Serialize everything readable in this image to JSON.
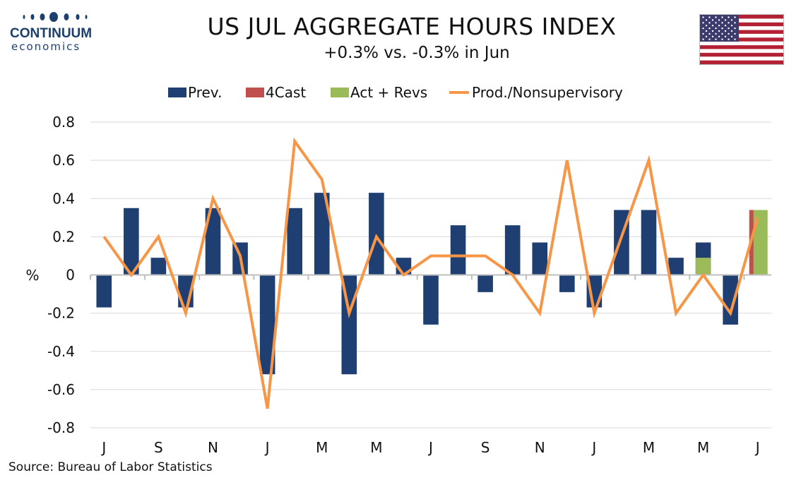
{
  "logo": {
    "name": "CONTINUUM",
    "sub": "economics"
  },
  "title": "US JUL AGGREGATE HOURS INDEX",
  "subtitle": "+0.3% vs. -0.3% in Jun",
  "source": "Source: Bureau of Labor Statistics",
  "chart_data": {
    "type": "bar",
    "ylabel": "%",
    "ylim": [
      -0.8,
      0.8
    ],
    "yticks": [
      0.8,
      0.6,
      0.4,
      0.2,
      0,
      -0.2,
      -0.4,
      -0.6,
      -0.8
    ],
    "ytick_labels": [
      "0.8",
      "0.6",
      "0.4",
      "0.2",
      "0",
      "-0.2",
      "-0.4",
      "-0.6",
      "-0.8"
    ],
    "xtick_labels": [
      "J",
      "S",
      "N",
      "J",
      "M",
      "M",
      "J",
      "S",
      "N",
      "J",
      "M",
      "M",
      "J"
    ],
    "grid": true,
    "legend_position": "top-center",
    "series": [
      {
        "name": "Prev.",
        "kind": "bar",
        "color": "#1f3f73",
        "values": [
          -0.17,
          0.35,
          0.09,
          -0.17,
          0.35,
          0.17,
          -0.52,
          0.35,
          0.43,
          -0.52,
          0.43,
          0.09,
          -0.26,
          0.26,
          -0.09,
          0.26,
          0.17,
          -0.09,
          -0.17,
          0.34,
          0.34,
          0.09,
          0.17,
          -0.26,
          0.34
        ]
      },
      {
        "name": "4Cast",
        "kind": "bar",
        "color": "#c0504d",
        "values": [
          null,
          null,
          null,
          null,
          null,
          null,
          null,
          null,
          null,
          null,
          null,
          null,
          null,
          null,
          null,
          null,
          null,
          null,
          null,
          null,
          null,
          null,
          null,
          null,
          0.34
        ]
      },
      {
        "name": "Act + Revs",
        "kind": "bar",
        "color": "#9bbb59",
        "values": [
          null,
          null,
          null,
          null,
          null,
          null,
          null,
          null,
          null,
          null,
          null,
          null,
          null,
          null,
          null,
          null,
          null,
          null,
          null,
          null,
          null,
          null,
          0.09,
          null,
          0.34
        ]
      },
      {
        "name": "Prod./Nonsupervisory",
        "kind": "line",
        "color": "#f79646",
        "values": [
          0.2,
          0.0,
          0.2,
          -0.2,
          0.4,
          0.1,
          -0.7,
          0.7,
          0.5,
          -0.2,
          0.2,
          0.0,
          0.1,
          0.1,
          0.1,
          0.0,
          -0.2,
          0.6,
          -0.2,
          0.2,
          0.6,
          -0.2,
          0.0,
          -0.2,
          0.3
        ]
      }
    ]
  },
  "colors": {
    "text": "#111111",
    "grid": "#d9d9d9",
    "axis": "#bfbfbf",
    "logo": "#1d3f6e"
  },
  "icons": {
    "flag": "us-flag-icon"
  }
}
